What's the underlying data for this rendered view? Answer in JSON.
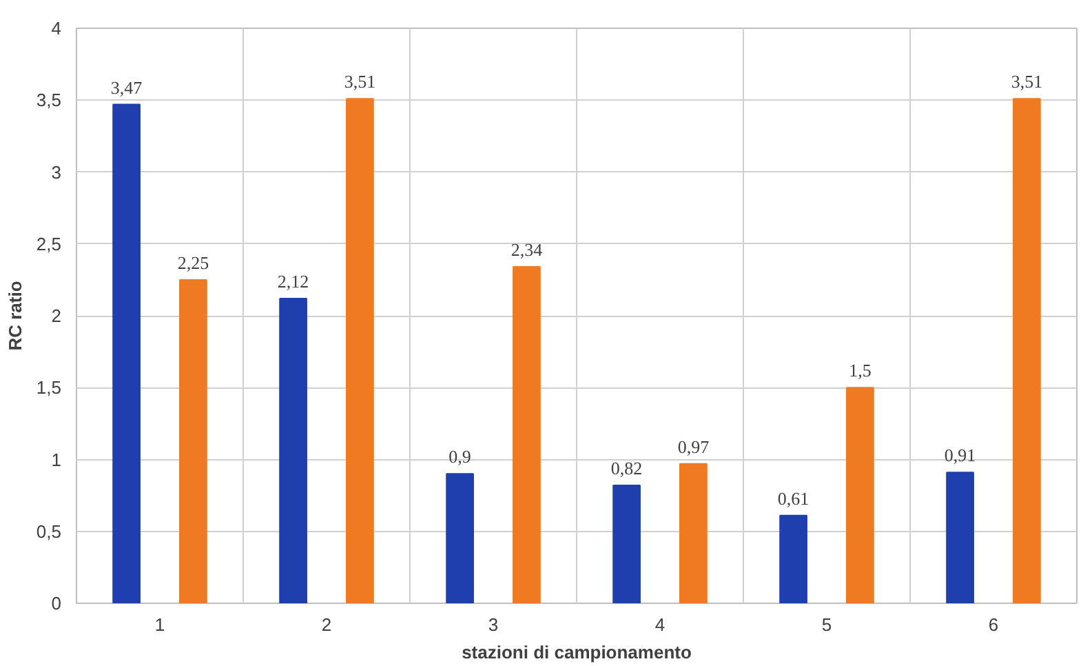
{
  "chart_data": {
    "type": "bar",
    "xlabel": "stazioni di campionamento",
    "ylabel": "RC ratio",
    "categories": [
      "1",
      "2",
      "3",
      "4",
      "5",
      "6"
    ],
    "series": [
      {
        "color": "#1f3fae",
        "values": [
          3.47,
          2.12,
          0.9,
          0.82,
          0.61,
          0.91
        ],
        "value_labels": [
          "3,47",
          "2,12",
          "0,9",
          "0,82",
          "0,61",
          "0,91"
        ]
      },
      {
        "color": "#f07a22",
        "values": [
          2.25,
          3.51,
          2.34,
          0.97,
          1.5,
          3.51
        ],
        "value_labels": [
          "2,25",
          "3,51",
          "2,34",
          "0,97",
          "1,5",
          "3,51"
        ]
      }
    ],
    "ylim": [
      0,
      4
    ],
    "yticks": [
      0,
      {
        "value": 0.5,
        "label": "0,5"
      },
      1,
      {
        "value": 1.5,
        "label": "1,5"
      },
      2,
      {
        "value": 2.5,
        "label": "2,5"
      },
      3,
      {
        "value": 3.5,
        "label": "3,5"
      },
      4
    ],
    "grid": true
  }
}
